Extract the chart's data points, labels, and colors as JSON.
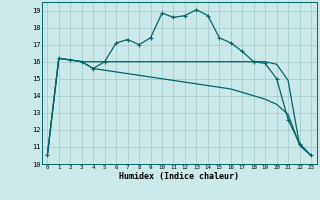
{
  "xlabel": "Humidex (Indice chaleur)",
  "background_color": "#cce9e9",
  "grid_color": "#aacccc",
  "line_color": "#006666",
  "xlim": [
    -0.5,
    23.5
  ],
  "ylim": [
    10,
    19.5
  ],
  "yticks": [
    10,
    11,
    12,
    13,
    14,
    15,
    16,
    17,
    18,
    19
  ],
  "xticks": [
    0,
    1,
    2,
    3,
    4,
    5,
    6,
    7,
    8,
    9,
    10,
    11,
    12,
    13,
    14,
    15,
    16,
    17,
    18,
    19,
    20,
    21,
    22,
    23
  ],
  "series1_x": [
    0,
    1,
    2,
    3,
    4,
    5,
    6,
    7,
    8,
    9,
    10,
    11,
    12,
    13,
    14,
    15,
    16,
    17,
    18,
    19,
    20,
    21,
    22,
    23
  ],
  "series1_y": [
    10.5,
    16.2,
    16.1,
    16.0,
    15.6,
    16.0,
    17.1,
    17.3,
    17.0,
    17.4,
    18.85,
    18.6,
    18.7,
    19.05,
    18.7,
    17.4,
    17.1,
    16.6,
    16.0,
    15.9,
    15.0,
    12.6,
    11.2,
    10.5
  ],
  "series2_x": [
    0,
    1,
    3,
    4,
    5,
    6,
    7,
    8,
    9,
    10,
    11,
    12,
    13,
    14,
    15,
    16,
    17,
    18,
    19,
    20,
    21,
    22,
    23
  ],
  "series2_y": [
    10.5,
    16.2,
    16.0,
    16.0,
    16.0,
    16.0,
    16.0,
    16.0,
    16.0,
    16.0,
    16.0,
    16.0,
    16.0,
    16.0,
    16.0,
    16.0,
    16.0,
    16.0,
    16.0,
    15.85,
    14.9,
    11.1,
    10.5
  ],
  "series3_x": [
    0,
    1,
    3,
    4,
    5,
    6,
    7,
    8,
    9,
    10,
    11,
    12,
    13,
    14,
    15,
    16,
    17,
    18,
    19,
    20,
    21,
    22,
    23
  ],
  "series3_y": [
    10.5,
    16.2,
    16.0,
    15.6,
    15.5,
    15.4,
    15.3,
    15.2,
    15.1,
    15.0,
    14.9,
    14.8,
    14.7,
    14.6,
    14.5,
    14.4,
    14.2,
    14.0,
    13.8,
    13.5,
    12.9,
    11.1,
    10.5
  ]
}
